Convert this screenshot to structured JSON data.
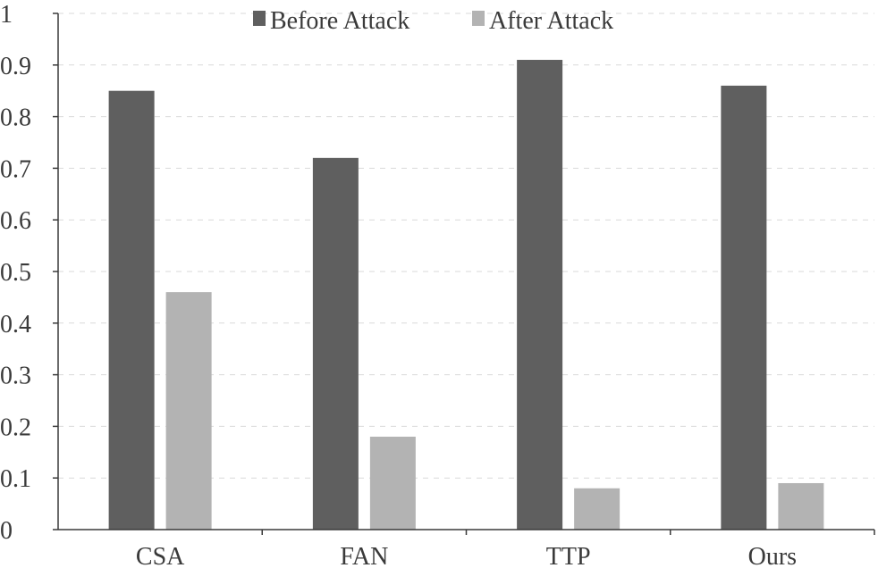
{
  "chart_data": {
    "type": "bar",
    "categories": [
      "CSA",
      "FAN",
      "TTP",
      "Ours"
    ],
    "series": [
      {
        "name": "Before Attack",
        "values": [
          0.85,
          0.72,
          0.91,
          0.86
        ],
        "color": "#5f5f5f"
      },
      {
        "name": "After Attack",
        "values": [
          0.46,
          0.18,
          0.08,
          0.09
        ],
        "color": "#b3b3b3"
      }
    ],
    "title": "",
    "xlabel": "",
    "ylabel": "",
    "ylim": [
      0,
      1
    ],
    "yticks": [
      "0",
      "0.1",
      "0.2",
      "0.3",
      "0.4",
      "0.5",
      "0.6",
      "0.7",
      "0.8",
      "0.9",
      "1"
    ],
    "grid": "horizontal dashed",
    "legend_position": "top-center"
  }
}
